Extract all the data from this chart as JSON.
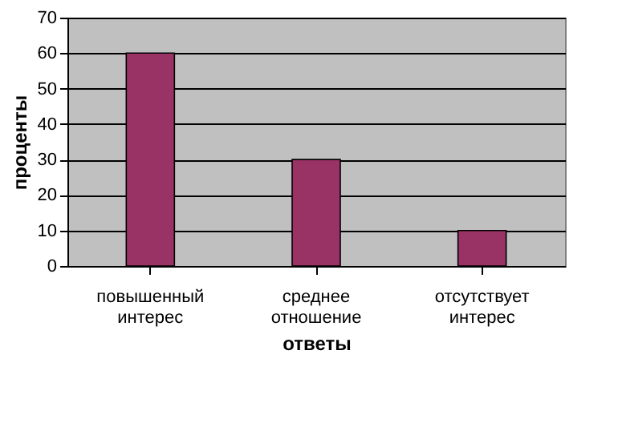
{
  "chart_data": {
    "type": "bar",
    "xlabel": "ответы",
    "ylabel": "проценты",
    "categories": [
      "повышенный интерес",
      "среднее отношение",
      "отсутствует интерес"
    ],
    "values": [
      60,
      30,
      10
    ],
    "color": "#993366",
    "ylim": [
      0,
      70
    ],
    "yticks": [
      0,
      10,
      20,
      30,
      40,
      50,
      60,
      70
    ],
    "grid": "y"
  }
}
